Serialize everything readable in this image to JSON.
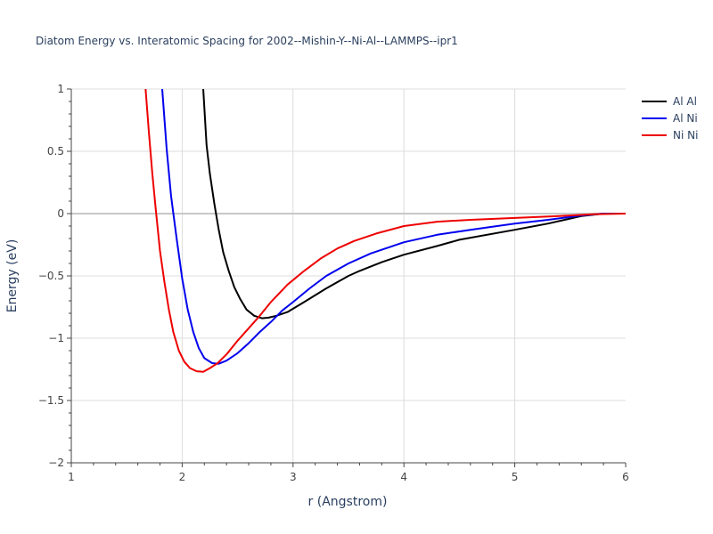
{
  "chart_data": {
    "type": "line",
    "title": "Diatom Energy vs. Interatomic Spacing for 2002--Mishin-Y--Ni-Al--LAMMPS--ipr1",
    "xlabel": "r (Angstrom)",
    "ylabel": "Energy (eV)",
    "xlim": [
      1,
      6
    ],
    "ylim": [
      -2,
      1
    ],
    "xticks": [
      1,
      2,
      3,
      4,
      5,
      6
    ],
    "xtick_labels": [
      "1",
      "2",
      "3",
      "4",
      "5",
      "6"
    ],
    "yticks": [
      1,
      0.5,
      0,
      -0.5,
      -1,
      -1.5,
      -2
    ],
    "ytick_labels": [
      "1",
      "0.5",
      "0",
      "−0.5",
      "−1",
      "−1.5",
      "−2"
    ],
    "grid": true,
    "legend_position": "top-right",
    "series": [
      {
        "name": "Al Al",
        "color": "#000000",
        "x": [
          2.19,
          2.22,
          2.25,
          2.29,
          2.33,
          2.37,
          2.42,
          2.47,
          2.52,
          2.58,
          2.65,
          2.72,
          2.78,
          2.85,
          2.95,
          3.1,
          3.3,
          3.5,
          3.6,
          3.8,
          4.0,
          4.3,
          4.5,
          5.0,
          5.3,
          5.6,
          5.8,
          6.0
        ],
        "y": [
          1.0,
          0.55,
          0.32,
          0.08,
          -0.13,
          -0.31,
          -0.46,
          -0.59,
          -0.68,
          -0.77,
          -0.82,
          -0.84,
          -0.835,
          -0.82,
          -0.79,
          -0.71,
          -0.6,
          -0.5,
          -0.46,
          -0.39,
          -0.33,
          -0.26,
          -0.21,
          -0.13,
          -0.08,
          -0.02,
          0.0,
          0.0
        ]
      },
      {
        "name": "Al Ni",
        "color": "#0000ee",
        "x": [
          1.82,
          1.86,
          1.9,
          1.95,
          2.0,
          2.05,
          2.1,
          2.15,
          2.2,
          2.27,
          2.33,
          2.4,
          2.5,
          2.6,
          2.7,
          2.8,
          2.9,
          3.0,
          3.15,
          3.3,
          3.5,
          3.7,
          4.0,
          4.3,
          4.6,
          5.0,
          5.3,
          5.6,
          5.8,
          6.0
        ],
        "y": [
          1.0,
          0.52,
          0.14,
          -0.2,
          -0.52,
          -0.77,
          -0.95,
          -1.08,
          -1.16,
          -1.2,
          -1.205,
          -1.18,
          -1.12,
          -1.04,
          -0.95,
          -0.87,
          -0.78,
          -0.71,
          -0.6,
          -0.5,
          -0.4,
          -0.32,
          -0.23,
          -0.17,
          -0.13,
          -0.08,
          -0.05,
          -0.015,
          0.0,
          0.0
        ]
      },
      {
        "name": "Ni Ni",
        "color": "#ee0000",
        "x": [
          1.67,
          1.7,
          1.73,
          1.76,
          1.8,
          1.84,
          1.88,
          1.92,
          1.97,
          2.02,
          2.07,
          2.13,
          2.19,
          2.25,
          2.32,
          2.4,
          2.5,
          2.6,
          2.7,
          2.8,
          2.95,
          3.1,
          3.25,
          3.4,
          3.55,
          3.75,
          4.0,
          4.3,
          4.6,
          5.0,
          5.4,
          5.7,
          6.0
        ],
        "y": [
          1.0,
          0.65,
          0.33,
          0.05,
          -0.3,
          -0.55,
          -0.77,
          -0.95,
          -1.1,
          -1.19,
          -1.24,
          -1.265,
          -1.27,
          -1.24,
          -1.2,
          -1.13,
          -1.02,
          -0.92,
          -0.82,
          -0.71,
          -0.57,
          -0.46,
          -0.36,
          -0.28,
          -0.22,
          -0.16,
          -0.1,
          -0.065,
          -0.05,
          -0.035,
          -0.02,
          -0.005,
          0.0
        ]
      }
    ]
  }
}
